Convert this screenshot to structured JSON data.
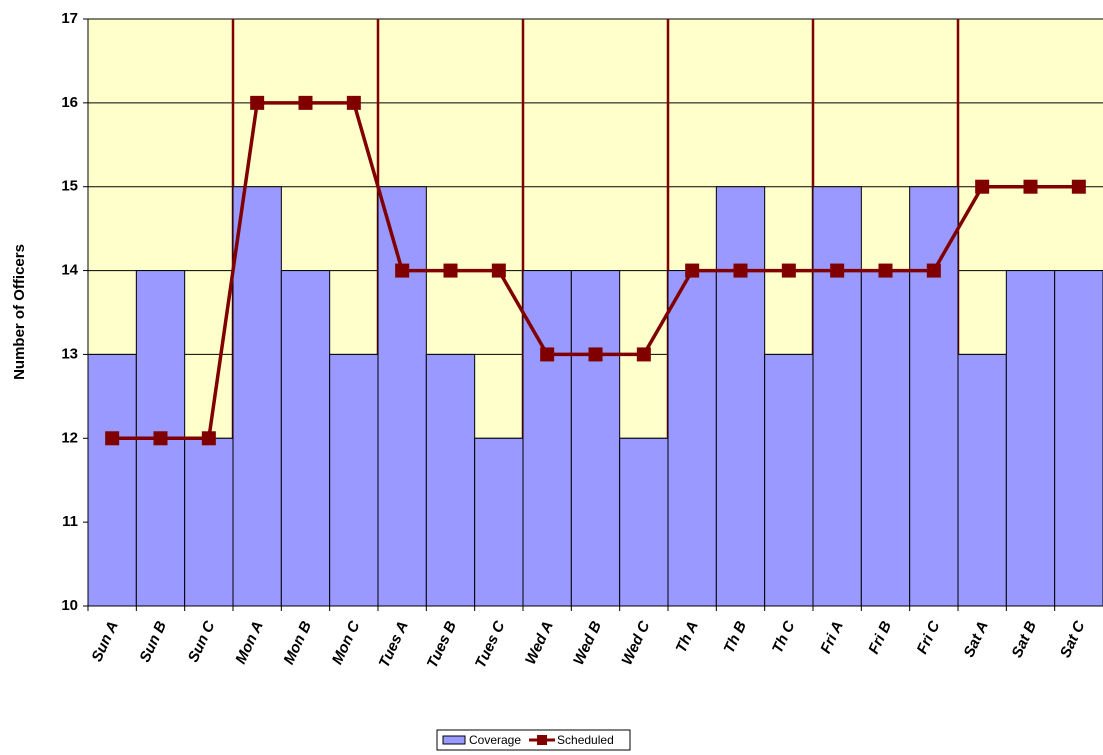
{
  "chart_data": {
    "type": "bar",
    "y_label": "Number of Officers",
    "categories": [
      "Sun A",
      "Sun B",
      "Sun C",
      "Mon A",
      "Mon B",
      "Mon C",
      "Tues A",
      "Tues B",
      "Tues C",
      "Wed A",
      "Wed B",
      "Wed C",
      "Th A",
      "Th B",
      "Th C",
      "Fri A",
      "Fri B",
      "Fri C",
      "Sat A",
      "Sat B",
      "Sat C"
    ],
    "series": [
      {
        "name": "Coverage",
        "type": "bar",
        "color": "#9999ff",
        "values": [
          13,
          14,
          12,
          15,
          14,
          13,
          15,
          13,
          12,
          14,
          14,
          12,
          14,
          15,
          13,
          15,
          14,
          15,
          13,
          14,
          14
        ]
      },
      {
        "name": "Scheduled",
        "type": "line",
        "color": "#800000",
        "values": [
          12,
          12,
          12,
          16,
          16,
          16,
          14,
          14,
          14,
          13,
          13,
          13,
          14,
          14,
          14,
          14,
          14,
          14,
          15,
          15,
          15
        ]
      }
    ],
    "ylim": [
      10,
      17
    ],
    "yticks": [
      10,
      11,
      12,
      13,
      14,
      15,
      16,
      17
    ],
    "grid": true,
    "legend": "bottom"
  }
}
